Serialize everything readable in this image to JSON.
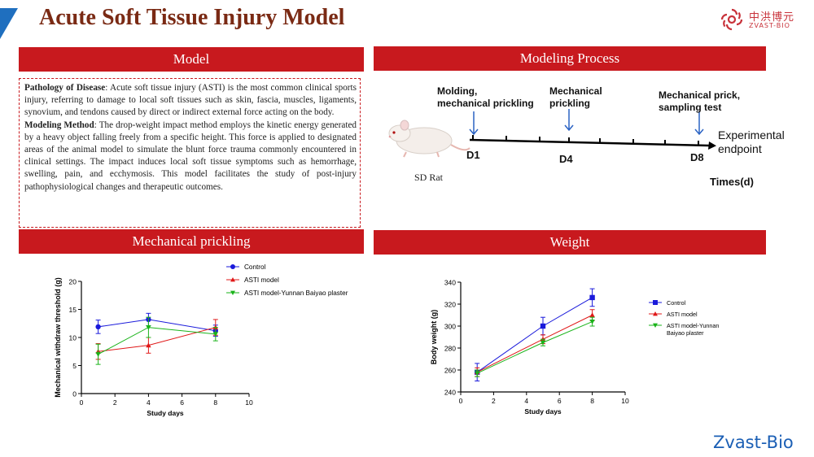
{
  "title": "Acute Soft Tissue Injury Model",
  "logo": {
    "cn": "中洪博元",
    "en": "ZVAST-BIO"
  },
  "brand_text": "Zvast-Bio",
  "colors": {
    "bar": "#c8191e",
    "title": "#7a2a14",
    "brand": "#1b5fb5",
    "corner": "#1f6fbf"
  },
  "sections": {
    "model": "Model",
    "modeling_process": "Modeling Process",
    "mechanical": "Mechanical prickling",
    "weight": "Weight"
  },
  "model_text": {
    "pathology_label": "Pathology of Disease",
    "pathology_body": ": Acute soft tissue injury (ASTI) is the most common clinical sports injury, referring to damage to local soft tissues such as skin, fascia, muscles, ligaments, synovium, and tendons caused by direct or indirect external force acting on the body.",
    "method_label": "Modeling Method",
    "method_body": ": The drop-weight impact method employs the kinetic energy generated by a heavy object falling freely from a specific height. This force is applied to designated areas of the animal model to simulate the blunt force trauma commonly encountered in clinical settings. The impact induces local soft tissue symptoms such as hemorrhage, swelling, pain, and ecchymosis. This model facilitates the study of post-injury pathophysiological changes and therapeutic outcomes."
  },
  "process": {
    "animal_label": "SD Rat",
    "step1": [
      "Molding,",
      "mechanical prickling"
    ],
    "step2": [
      "Mechanical",
      "prickling"
    ],
    "step3": [
      "Mechanical prick,",
      "sampling test"
    ],
    "day1": "D1",
    "day4": "D4",
    "day8": "D8",
    "endpoint": [
      "Experimental",
      "endpoint"
    ],
    "axis_label": "Times(d)"
  },
  "chart_data": [
    {
      "type": "line",
      "xlabel": "Study days",
      "ylabel": "Mechanical withdraw threshold (g)",
      "xlim": [
        0,
        10
      ],
      "ylim": [
        0,
        20
      ],
      "xticks": [
        0,
        2,
        4,
        6,
        8,
        10
      ],
      "yticks": [
        0,
        5,
        10,
        15,
        20
      ],
      "x": [
        1,
        4,
        8
      ],
      "legend_position": "top-right",
      "series": [
        {
          "name": "Control",
          "color": "#1a1adb",
          "marker": "circle",
          "values": [
            11.9,
            13.2,
            11.2
          ],
          "error": [
            1.2,
            1.1,
            1.0
          ]
        },
        {
          "name": "ASTI model",
          "color": "#e01818",
          "marker": "triangle-up",
          "values": [
            7.5,
            8.6,
            11.8
          ],
          "error": [
            1.4,
            1.4,
            1.4
          ]
        },
        {
          "name": "ASTI model-Yunnan Baiyao plaster",
          "color": "#19b319",
          "marker": "triangle-down",
          "values": [
            7.0,
            11.8,
            10.6
          ],
          "error": [
            1.8,
            1.8,
            1.2
          ]
        }
      ]
    },
    {
      "type": "line",
      "xlabel": "Study days",
      "ylabel": "Body weight (g)",
      "xlim": [
        0,
        10
      ],
      "ylim": [
        240,
        340
      ],
      "xticks": [
        0,
        2,
        4,
        6,
        8,
        10
      ],
      "yticks": [
        240,
        260,
        280,
        300,
        320,
        340
      ],
      "x": [
        1,
        5,
        8
      ],
      "legend_position": "right",
      "series": [
        {
          "name": "Control",
          "color": "#1a1adb",
          "marker": "square",
          "values": [
            258,
            300,
            326
          ],
          "error": [
            8,
            8,
            8
          ]
        },
        {
          "name": "ASTI model",
          "color": "#e01818",
          "marker": "triangle-up",
          "values": [
            258,
            288,
            310
          ],
          "error": [
            4,
            4,
            5
          ]
        },
        {
          "name": "ASTI model-Yunnan\nBaiyao plaster",
          "color": "#19b319",
          "marker": "triangle-down",
          "values": [
            257,
            285,
            304
          ],
          "error": [
            3,
            3,
            4
          ]
        }
      ]
    }
  ]
}
